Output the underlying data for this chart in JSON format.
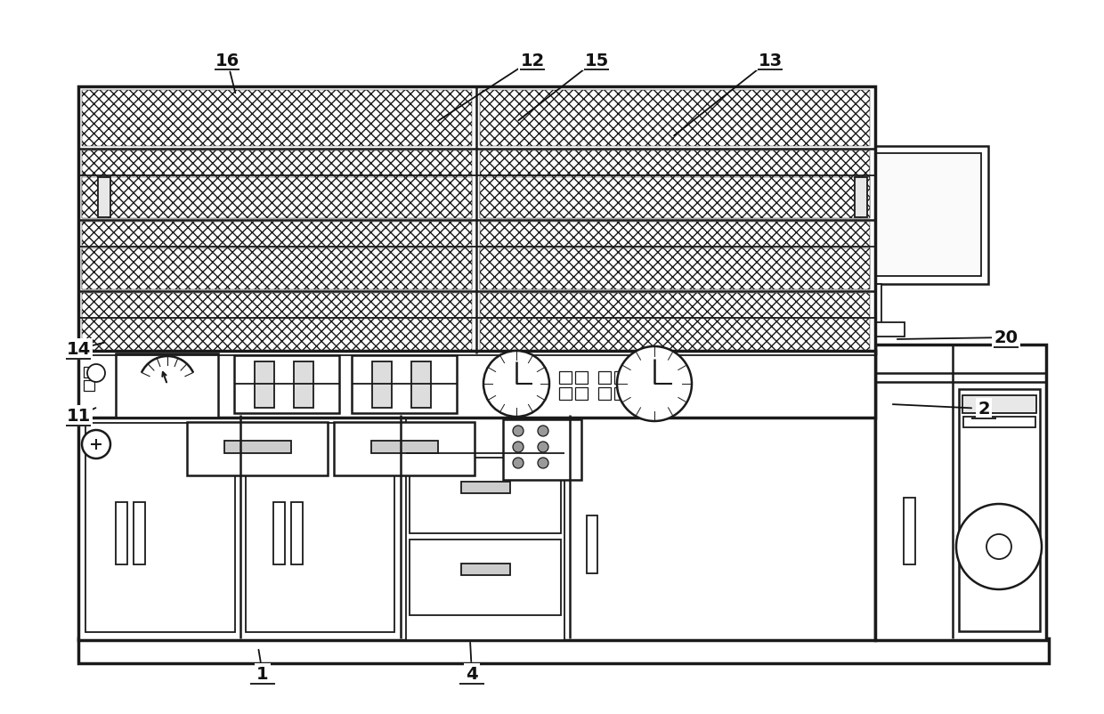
{
  "bg": "#ffffff",
  "lc": "#1a1a1a",
  "fig_w": 12.4,
  "fig_h": 8.03,
  "dpi": 100,
  "labels": [
    [
      "1",
      295,
      758,
      290,
      728
    ],
    [
      "2",
      1105,
      460,
      1000,
      455
    ],
    [
      "4",
      530,
      758,
      528,
      720
    ],
    [
      "11",
      88,
      468,
      110,
      458
    ],
    [
      "12",
      598,
      68,
      490,
      138
    ],
    [
      "13",
      865,
      68,
      755,
      155
    ],
    [
      "14",
      88,
      393,
      120,
      385
    ],
    [
      "15",
      670,
      68,
      580,
      138
    ],
    [
      "16",
      255,
      68,
      265,
      108
    ],
    [
      "20",
      1130,
      380,
      1005,
      382
    ]
  ]
}
